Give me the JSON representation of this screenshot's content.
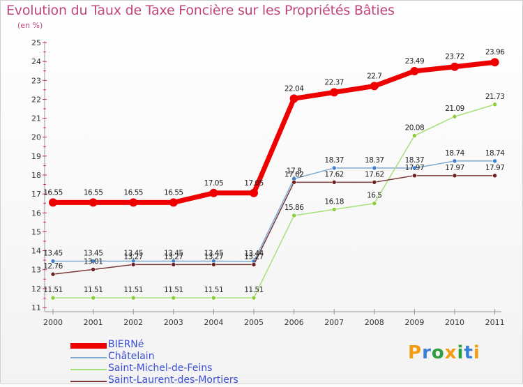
{
  "header": {
    "title": "Evolution du Taux de Taxe Foncière sur les Propriétés Bâties",
    "unit": "(en %)"
  },
  "logo": {
    "text": "Proxiti"
  },
  "colors": {
    "title": "#c0457a",
    "axis": "#999999",
    "grid_tick": "#d81b60",
    "BIERNe": "#ee0000",
    "Chatelain": "#7fa9cf",
    "StMichel": "#a6e07a",
    "StLaurent": "#7a3838"
  },
  "chart_data": {
    "type": "line",
    "title": "Evolution du Taux de Taxe Foncière sur les Propriétés Bâties",
    "ylabel": "(en %)",
    "xlabel": "",
    "ylim": [
      11,
      25
    ],
    "yticks": [
      11,
      12,
      13,
      14,
      15,
      16,
      17,
      18,
      19,
      20,
      21,
      22,
      23,
      24,
      25
    ],
    "categories": [
      "2000",
      "2001",
      "2002",
      "2003",
      "2004",
      "2005",
      "2006",
      "2007",
      "2008",
      "2009",
      "2010",
      "2011"
    ],
    "series": [
      {
        "name": "BIERNé",
        "key": "BIERNe",
        "values": [
          16.55,
          16.55,
          16.55,
          16.55,
          17.05,
          17.05,
          22.04,
          22.37,
          22.7,
          23.49,
          23.72,
          23.96
        ],
        "labels": [
          "16.55",
          "16.55",
          "16.55",
          "16.55",
          "17.05",
          "17.05",
          "22.04",
          "22.37",
          "22.7",
          "23.49",
          "23.72",
          "23.96"
        ]
      },
      {
        "name": "Châtelain",
        "key": "Chatelain",
        "values": [
          13.45,
          13.45,
          13.45,
          13.45,
          13.45,
          13.44,
          17.8,
          18.37,
          18.37,
          18.37,
          18.74,
          18.74
        ],
        "labels": [
          "13.45",
          "13.45",
          "13.45",
          "13.45",
          "13.45",
          "13.44",
          "17.8",
          "18.37",
          "18.37",
          "18.37",
          "18.74",
          "18.74"
        ]
      },
      {
        "name": "Saint-Michel-de-Feins",
        "key": "StMichel",
        "values": [
          11.51,
          11.51,
          11.51,
          11.51,
          11.51,
          11.51,
          15.86,
          16.18,
          16.5,
          20.08,
          21.09,
          21.73
        ],
        "labels": [
          "11.51",
          "11.51",
          "11.51",
          "11.51",
          "11.51",
          "11.51",
          "15.86",
          "16.18",
          "16.5",
          "20.08",
          "21.09",
          "21.73"
        ]
      },
      {
        "name": "Saint-Laurent-des-Mortiers",
        "key": "StLaurent",
        "values": [
          12.76,
          13.01,
          13.27,
          13.27,
          13.27,
          13.27,
          17.62,
          17.62,
          17.62,
          17.97,
          17.97,
          17.97
        ],
        "labels": [
          "12.76",
          "13.01",
          "13.27",
          "13.27",
          "13.27",
          "13.27",
          "17.62",
          "17.62",
          "17.62",
          "17.97",
          "17.97",
          "17.97"
        ]
      }
    ]
  }
}
